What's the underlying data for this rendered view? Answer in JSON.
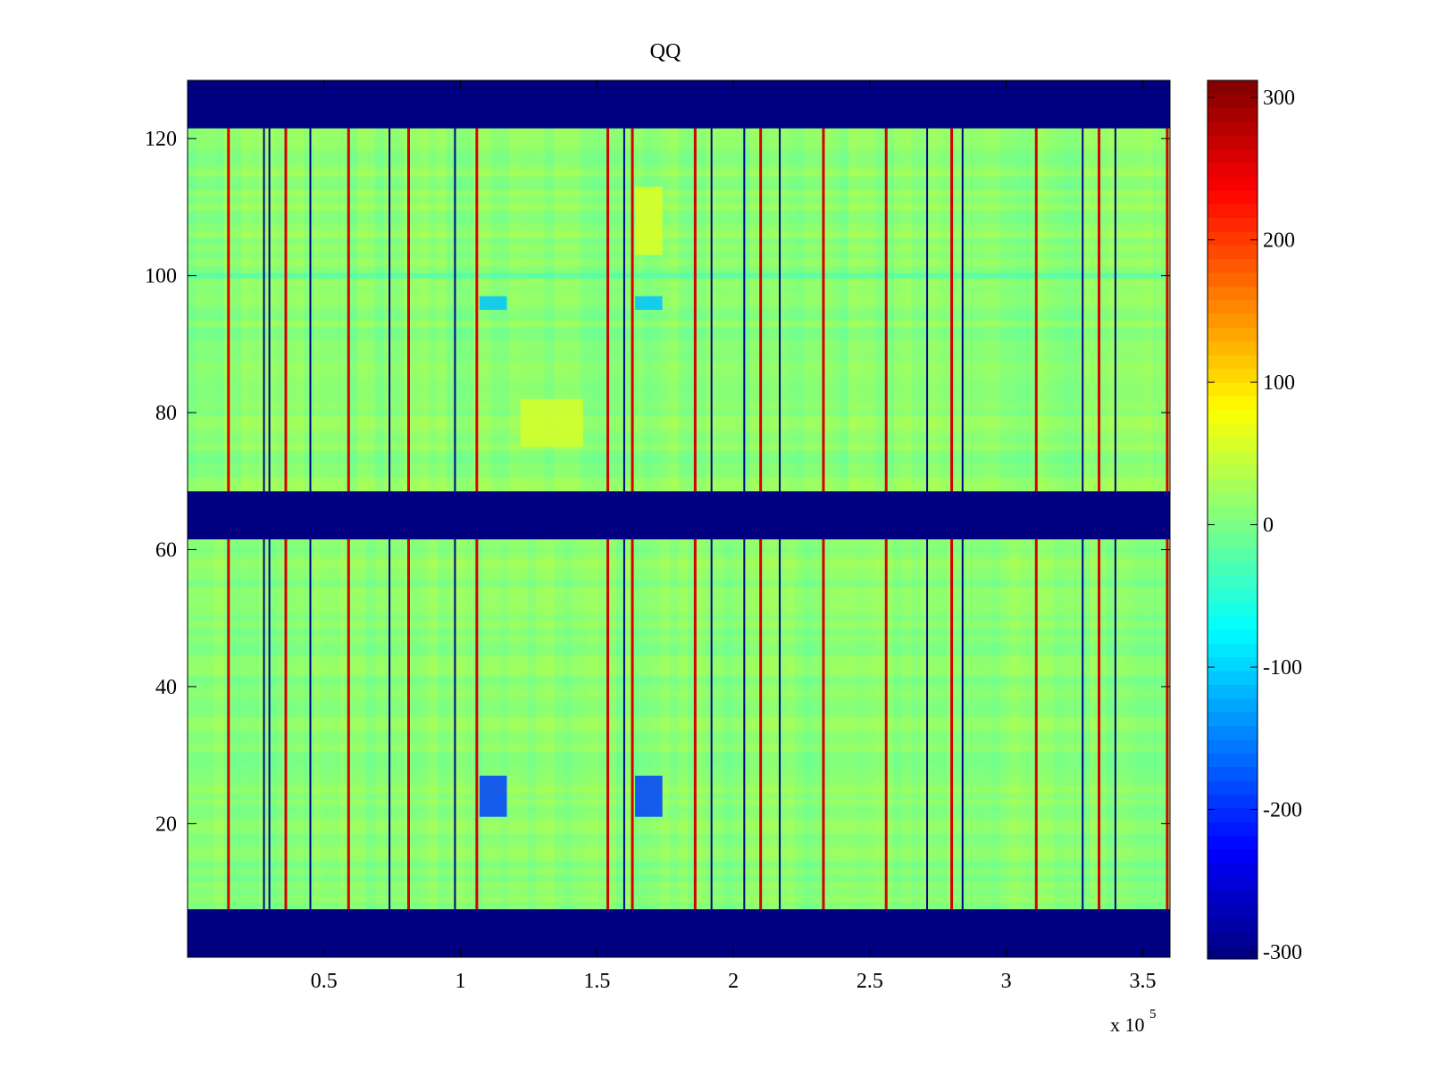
{
  "chart_data": {
    "type": "heatmap",
    "title": "QQ",
    "xlabel": "",
    "ylabel": "",
    "x_multiplier_label": "x 10",
    "x_multiplier_exponent": "5",
    "xlim": [
      0,
      3.6
    ],
    "ylim": [
      0.5,
      128.5
    ],
    "x_ticks": [
      0.5,
      1,
      1.5,
      2,
      2.5,
      3,
      3.5
    ],
    "x_tick_labels": [
      "0.5",
      "1",
      "1.5",
      "2",
      "2.5",
      "3",
      "3.5"
    ],
    "y_ticks": [
      20,
      40,
      60,
      80,
      100,
      120
    ],
    "y_tick_labels": [
      "20",
      "40",
      "60",
      "80",
      "100",
      "120"
    ],
    "colormap": "jet",
    "clim": [
      -305,
      312
    ],
    "colorbar_ticks": [
      300,
      200,
      100,
      0,
      -100,
      -200,
      -300
    ],
    "colorbar_tick_labels": [
      "300",
      "200",
      "100",
      "0",
      "-100",
      "-200",
      "-300"
    ],
    "background_value": -305,
    "fill_value_bands": [
      {
        "y_range": [
          0.5,
          7.5
        ],
        "value": -305
      },
      {
        "y_range": [
          61.5,
          68.5
        ],
        "value": -305
      },
      {
        "y_range": [
          121.5,
          128.5
        ],
        "value": -305
      }
    ],
    "data_bands": [
      [
        7.5,
        61.5
      ],
      [
        68.5,
        121.5
      ]
    ],
    "typical_value": 10,
    "high_value_columns_x": [
      0.15,
      0.36,
      0.59,
      0.81,
      1.06,
      1.54,
      1.63,
      1.86,
      2.1,
      2.33,
      2.56,
      2.8,
      3.11,
      3.34,
      3.59
    ],
    "low_value_columns_x": [
      0.28,
      0.3,
      0.45,
      0.74,
      0.98,
      1.6,
      1.92,
      2.04,
      2.17,
      2.71,
      2.84,
      3.28,
      3.4
    ],
    "low_value_patches": [
      {
        "x_range": [
          1.07,
          1.17
        ],
        "y_range": [
          21,
          27
        ],
        "value": -190
      },
      {
        "x_range": [
          1.64,
          1.74
        ],
        "y_range": [
          21,
          27
        ],
        "value": -190
      },
      {
        "x_range": [
          1.07,
          1.17
        ],
        "y_range": [
          95,
          97
        ],
        "value": -110
      },
      {
        "x_range": [
          1.64,
          1.74
        ],
        "y_range": [
          95,
          97
        ],
        "value": -110
      }
    ],
    "high_value_patches": [
      {
        "x_range": [
          1.22,
          1.45
        ],
        "y_range": [
          75,
          82
        ],
        "value": 55
      },
      {
        "x_range": [
          1.64,
          1.74
        ],
        "y_range": [
          103,
          113
        ],
        "value": 60
      }
    ],
    "anomaly_row_y": 100
  }
}
